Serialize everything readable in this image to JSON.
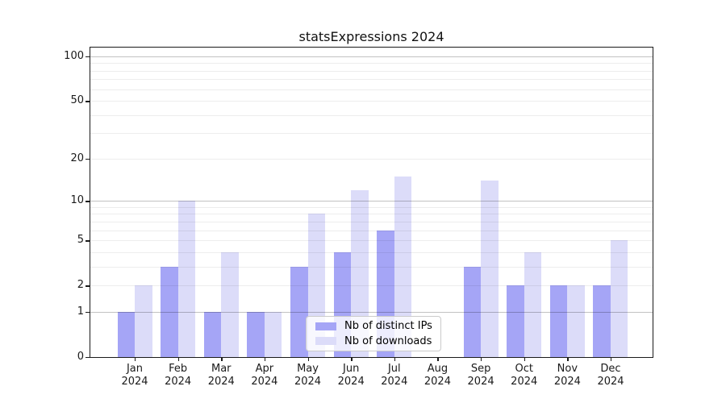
{
  "chart_data": {
    "type": "bar",
    "title": "statsExpressions 2024",
    "months": [
      "Jan",
      "Feb",
      "Mar",
      "Apr",
      "May",
      "Jun",
      "Jul",
      "Aug",
      "Sep",
      "Oct",
      "Nov",
      "Dec"
    ],
    "year": "2024",
    "categories": [
      "Jan 2024",
      "Feb 2024",
      "Mar 2024",
      "Apr 2024",
      "May 2024",
      "Jun 2024",
      "Jul 2024",
      "Aug 2024",
      "Sep 2024",
      "Oct 2024",
      "Nov 2024",
      "Dec 2024"
    ],
    "series": [
      {
        "name": "Nb of distinct IPs",
        "color": "#a5a5f6",
        "values": [
          1,
          3,
          1,
          1,
          3,
          4,
          6,
          0,
          3,
          2,
          2,
          2
        ]
      },
      {
        "name": "Nb of downloads",
        "color": "#dcdcf9",
        "values": [
          2,
          10,
          4,
          1,
          8,
          12,
          15,
          0,
          14,
          4,
          2,
          5
        ]
      }
    ],
    "yscale": "log1p",
    "y_ticks": [
      0,
      1,
      2,
      5,
      10,
      20,
      50,
      100
    ],
    "y_minor_gridlines": [
      2,
      3,
      4,
      5,
      6,
      7,
      8,
      9,
      20,
      30,
      40,
      50,
      60,
      70,
      80,
      90
    ],
    "y_major_gridlines": [
      1,
      10,
      100
    ],
    "ylim": [
      0,
      115
    ],
    "grid": true,
    "legend_position": "lower center",
    "background_color": "#ffffff",
    "spine_color": "#1a1a1a"
  }
}
